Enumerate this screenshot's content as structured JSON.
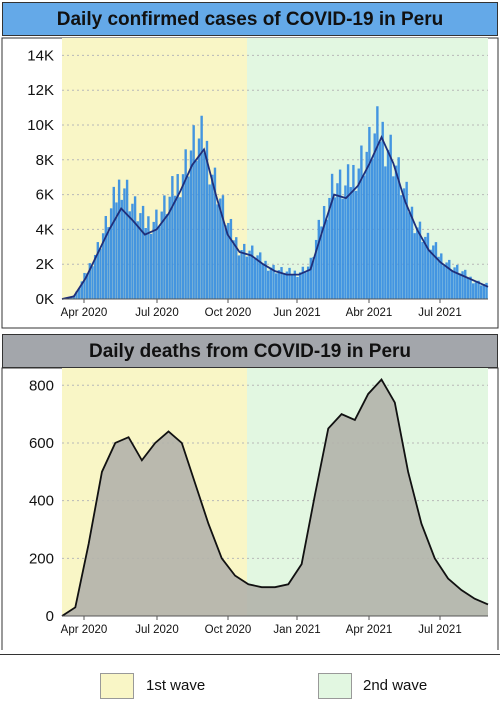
{
  "charts": {
    "cases_title": "Daily confirmed cases of COVID-19 in Peru",
    "deaths_title": "Daily deaths from COVID-19 in Peru"
  },
  "legend": {
    "wave1_label": "1st wave",
    "wave2_label": "2nd wave",
    "wave1_color": "#f9f6c6",
    "wave2_color": "#e2f7e1"
  },
  "chart_data": [
    {
      "type": "bar",
      "title": "Daily confirmed cases of COVID-19 in Peru",
      "xlabel": "",
      "ylabel": "",
      "ylim": [
        0,
        15000
      ],
      "y_ticks": [
        0,
        2000,
        4000,
        6000,
        8000,
        10000,
        12000,
        14000
      ],
      "y_tick_labels": [
        "0K",
        "2K",
        "4K",
        "6K",
        "8K",
        "10K",
        "12K",
        "14K"
      ],
      "x_tick_labels": [
        "Apr 2020",
        "Jul 2020",
        "Oct 2020",
        "Jun 2021",
        "Abr 2021",
        "Jul 2021"
      ],
      "bar_color": "#3a8fe0",
      "line_color": "#1f2f7a",
      "grid": true,
      "series": [
        {
          "values": [
            0,
            200,
            1500,
            3000,
            4800,
            6800,
            5200,
            4300,
            4600,
            5500,
            7000,
            8600,
            8900,
            6500,
            4200,
            2900,
            2700,
            2100,
            1700,
            1500,
            1500,
            1900,
            4500,
            6700,
            6200,
            7500,
            8500,
            9600,
            8200,
            6000,
            4300,
            3300,
            2500,
            1900,
            1500,
            1000,
            800
          ]
        },
        {
          "values": [
            0,
            150,
            1200,
            2600,
            4000,
            5200,
            4500,
            3700,
            4000,
            4900,
            6200,
            7700,
            8600,
            6000,
            3700,
            2700,
            2500,
            2000,
            1600,
            1400,
            1400,
            1700,
            3900,
            6000,
            5800,
            6500,
            7800,
            9300,
            7800,
            5600,
            4000,
            2800,
            2100,
            1600,
            1300,
            1000,
            700
          ]
        }
      ]
    },
    {
      "type": "area",
      "title": "Daily deaths from COVID-19 in Peru",
      "xlabel": "",
      "ylabel": "",
      "ylim": [
        0,
        860
      ],
      "y_ticks": [
        0,
        200,
        400,
        600,
        800
      ],
      "y_tick_labels": [
        "0",
        "200",
        "400",
        "600",
        "800"
      ],
      "x_tick_labels": [
        "Apr 2020",
        "Jul 2020",
        "Oct 2020",
        "Jan 2021",
        "Apr 2021",
        "Jul 2021"
      ],
      "area_color": "#b3b2ab",
      "line_color": "#111111",
      "grid": true,
      "series": [
        {
          "values": [
            0,
            30,
            250,
            500,
            600,
            620,
            540,
            600,
            640,
            600,
            460,
            320,
            200,
            140,
            110,
            100,
            100,
            110,
            180,
            420,
            650,
            700,
            680,
            770,
            820,
            740,
            500,
            320,
            200,
            130,
            90,
            60,
            40
          ]
        }
      ]
    }
  ]
}
